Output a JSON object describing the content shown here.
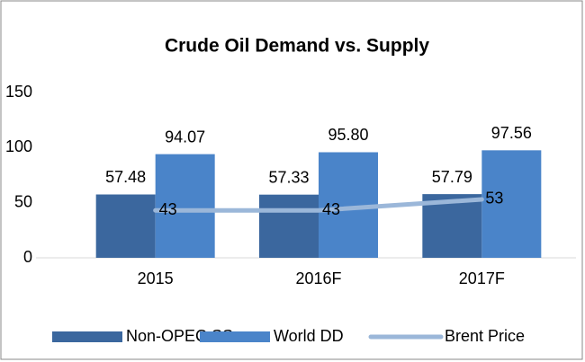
{
  "chart_data": {
    "type": "bar",
    "title": "Crude Oil Demand vs. Supply",
    "categories": [
      "2015",
      "2016F",
      "2017F"
    ],
    "series": [
      {
        "name": "Non-OPEC SS",
        "color": "#3b679e",
        "values": [
          57.48,
          57.33,
          57.79
        ]
      },
      {
        "name": "World DD",
        "color": "#4a84c9",
        "values": [
          94.07,
          95.8,
          97.56
        ],
        "value_labels": [
          "94.07",
          "95.80",
          "97.56"
        ]
      },
      {
        "name": "Brent Price",
        "color": "#9bb7d9",
        "type": "line",
        "values": [
          43,
          43,
          53
        ]
      }
    ],
    "ylim": [
      0,
      150
    ],
    "yticks": [
      0,
      50,
      100,
      150
    ],
    "grid": false,
    "legend": "bottom"
  }
}
